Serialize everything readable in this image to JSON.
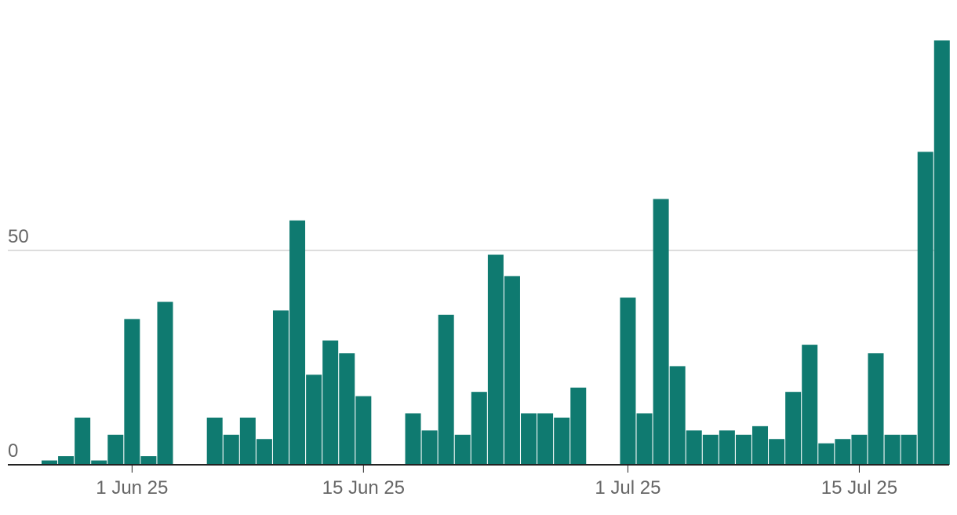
{
  "chart_data": {
    "type": "bar",
    "color": "#0f7a70",
    "x": [
      "2025-05-27",
      "2025-05-28",
      "2025-05-29",
      "2025-05-30",
      "2025-05-31",
      "2025-06-01",
      "2025-06-02",
      "2025-06-03",
      "2025-06-04",
      "2025-06-05",
      "2025-06-06",
      "2025-06-07",
      "2025-06-08",
      "2025-06-09",
      "2025-06-10",
      "2025-06-11",
      "2025-06-12",
      "2025-06-13",
      "2025-06-14",
      "2025-06-15",
      "2025-06-16",
      "2025-06-17",
      "2025-06-18",
      "2025-06-19",
      "2025-06-20",
      "2025-06-21",
      "2025-06-22",
      "2025-06-23",
      "2025-06-24",
      "2025-06-25",
      "2025-06-26",
      "2025-06-27",
      "2025-06-28",
      "2025-06-29",
      "2025-06-30",
      "2025-07-01",
      "2025-07-02",
      "2025-07-03",
      "2025-07-04",
      "2025-07-05",
      "2025-07-06",
      "2025-07-07",
      "2025-07-08",
      "2025-07-09",
      "2025-07-10",
      "2025-07-11",
      "2025-07-12",
      "2025-07-13",
      "2025-07-14",
      "2025-07-15",
      "2025-07-16",
      "2025-07-17",
      "2025-07-18",
      "2025-07-19",
      "2025-07-20"
    ],
    "values": [
      1,
      2,
      11,
      1,
      7,
      34,
      2,
      38,
      0,
      0,
      11,
      7,
      11,
      6,
      36,
      57,
      21,
      29,
      26,
      16,
      0,
      0,
      12,
      8,
      35,
      7,
      17,
      49,
      44,
      12,
      12,
      11,
      18,
      0,
      0,
      39,
      12,
      62,
      23,
      8,
      7,
      8,
      7,
      9,
      6,
      17,
      28,
      5,
      6,
      7,
      26,
      7,
      7,
      73,
      99
    ],
    "xticks": [
      {
        "value": "2025-06-01",
        "label": "1 Jun 25"
      },
      {
        "value": "2025-06-15",
        "label": "15 Jun 25"
      },
      {
        "value": "2025-07-01",
        "label": "1 Jul 25"
      },
      {
        "value": "2025-07-15",
        "label": "15 Jul 25"
      }
    ],
    "ylim": [
      0,
      100
    ],
    "yticks": [
      0,
      50
    ],
    "grid": true
  }
}
